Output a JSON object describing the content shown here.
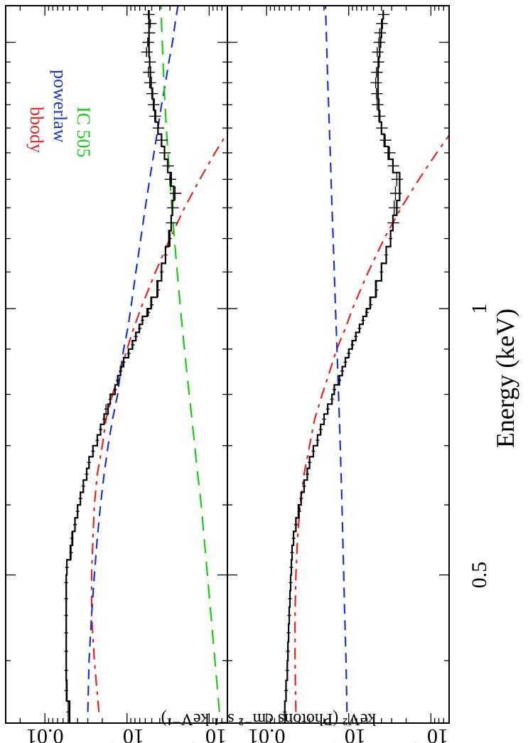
{
  "chart_data": {
    "type": "line",
    "orientation": "rotated-90-clockwise",
    "x_axis": {
      "label": "Energy (keV)",
      "scale": "log",
      "range": [
        0.34,
        2.2
      ],
      "tick_labels": [
        "0.5",
        "1"
      ]
    },
    "y_axis": {
      "label": "keV² (Photons cm⁻² s⁻¹ keV⁻¹)",
      "scale": "log",
      "tick_labels": [
        "0.01",
        "10⁻³",
        "10⁻⁴"
      ]
    },
    "legend": {
      "placement": "top-right",
      "entries": [
        {
          "name": "bbody",
          "color": "#e8231f"
        },
        {
          "name": "powerlaw",
          "color": "#1a33d6"
        },
        {
          "name": "IC 505",
          "color": "#18cc12"
        }
      ]
    },
    "panels": [
      {
        "ylim": [
          6e-05,
          0.03
        ],
        "data": {
          "x": [
            0.35,
            0.37,
            0.39,
            0.41,
            0.43,
            0.45,
            0.47,
            0.49,
            0.51,
            0.53,
            0.55,
            0.57,
            0.59,
            0.61,
            0.63,
            0.65,
            0.67,
            0.69,
            0.71,
            0.73,
            0.75,
            0.77,
            0.79,
            0.81,
            0.83,
            0.85,
            0.87,
            0.89,
            0.91,
            0.93,
            0.95,
            0.97,
            0.99,
            1.01,
            1.05,
            1.1,
            1.15,
            1.2,
            1.25,
            1.3,
            1.35,
            1.4,
            1.45,
            1.5,
            1.55,
            1.6,
            1.65,
            1.7,
            1.75,
            1.8,
            1.85,
            1.9,
            1.95,
            2.0,
            2.05,
            2.1,
            2.15
          ],
          "y": [
            0.0052,
            0.0055,
            0.0055,
            0.0055,
            0.0055,
            0.0055,
            0.0055,
            0.0055,
            0.0054,
            0.0048,
            0.0047,
            0.0043,
            0.004,
            0.0037,
            0.0034,
            0.0031,
            0.0029,
            0.0026,
            0.0023,
            0.0021,
            0.0019,
            0.0018,
            0.0016,
            0.0014,
            0.0013,
            0.0012,
            0.0011,
            0.00095,
            0.00085,
            0.00078,
            0.0007,
            0.00065,
            0.00055,
            0.0005,
            0.00042,
            0.00038,
            0.00034,
            0.0003,
            0.00029,
            0.00028,
            0.00026,
            0.0003,
            0.00032,
            0.00035,
            0.00038,
            0.00042,
            0.00046,
            0.00048,
            0.0005,
            0.00053,
            0.00055,
            0.00053,
            0.00058,
            0.00056,
            0.00054,
            0.00052,
            0.00055
          ]
        },
        "model": {
          "x": [
            0.35,
            0.37,
            0.39,
            0.41,
            0.43,
            0.45,
            0.47,
            0.49,
            0.51,
            0.53,
            0.55,
            0.57,
            0.59,
            0.61,
            0.63,
            0.65,
            0.67,
            0.69,
            0.71,
            0.73,
            0.75,
            0.77,
            0.79,
            0.81,
            0.83,
            0.85,
            0.87,
            0.89,
            0.91,
            0.93,
            0.95,
            0.97,
            0.99,
            1.01,
            1.05,
            1.1,
            1.15,
            1.2,
            1.25,
            1.3,
            1.35,
            1.4,
            1.45,
            1.5,
            1.55,
            1.6,
            1.65,
            1.7,
            1.75,
            1.8,
            1.85,
            1.9,
            1.95,
            2.0,
            2.05,
            2.1,
            2.15
          ],
          "y": [
            0.005,
            0.0054,
            0.0055,
            0.0055,
            0.0055,
            0.0055,
            0.0055,
            0.0055,
            0.0054,
            0.0049,
            0.0046,
            0.0043,
            0.004,
            0.0037,
            0.0034,
            0.0031,
            0.0029,
            0.0026,
            0.0023,
            0.0021,
            0.0019,
            0.0017,
            0.0016,
            0.0014,
            0.0013,
            0.0012,
            0.0011,
            0.00096,
            0.00086,
            0.00078,
            0.00071,
            0.00065,
            0.00057,
            0.00051,
            0.00043,
            0.00038,
            0.00034,
            0.00031,
            0.00029,
            0.00028,
            0.00027,
            0.00029,
            0.00032,
            0.00035,
            0.00038,
            0.00042,
            0.00045,
            0.00047,
            0.00049,
            0.00051,
            0.00052,
            0.00053,
            0.00054,
            0.00054,
            0.00054,
            0.00054,
            0.00054
          ]
        },
        "series": [
          {
            "name": "bbody",
            "x": [
              0.35,
              0.4,
              0.45,
              0.5,
              0.55,
              0.6,
              0.65,
              0.7,
              0.75,
              0.8,
              0.85,
              0.9,
              0.95,
              1.0,
              1.1,
              1.2,
              1.3,
              1.4,
              1.5,
              1.6,
              1.7,
              1.8,
              1.9,
              2.0,
              2.1,
              2.2
            ],
            "y": [
              0.0022,
              0.0025,
              0.0027,
              0.0027,
              0.0026,
              0.0025,
              0.0023,
              0.002,
              0.0018,
              0.0015,
              0.0012,
              0.001,
              0.00083,
              0.00068,
              0.00045,
              0.0003,
              0.0002,
              0.00013,
              8.5e-05,
              5.5e-05,
              3.5e-05,
              2.2e-05,
              1.4e-05,
              9e-06,
              6e-06,
              4e-06
            ]
          },
          {
            "name": "powerlaw",
            "x": [
              0.35,
              0.4,
              0.45,
              0.5,
              0.55,
              0.6,
              0.65,
              0.7,
              0.75,
              0.8,
              0.85,
              0.9,
              0.95,
              1.0,
              1.1,
              1.2,
              1.3,
              1.4,
              1.5,
              1.6,
              1.7,
              1.8,
              1.9,
              2.0,
              2.1,
              2.2
            ],
            "y": [
              0.003,
              0.0029,
              0.0027,
              0.0025,
              0.0023,
              0.0021,
              0.0019,
              0.0017,
              0.0015,
              0.0013,
              0.0012,
              0.0011,
              0.00098,
              0.0009,
              0.00078,
              0.00068,
              0.0006,
              0.00053,
              0.00047,
              0.00042,
              0.00038,
              0.00034,
              0.00031,
              0.00028,
              0.00026,
              0.00024
            ]
          },
          {
            "name": "IC 505",
            "x": [
              0.35,
              0.4,
              0.45,
              0.5,
              0.55,
              0.6,
              0.65,
              0.7,
              0.75,
              0.8,
              0.85,
              0.9,
              0.95,
              1.0,
              1.1,
              1.2,
              1.3,
              1.4,
              1.5,
              1.6,
              1.7,
              1.8,
              1.9,
              2.0,
              2.1,
              2.2
            ],
            "y": [
              7.5e-05,
              8.5e-05,
              9.5e-05,
              0.000105,
              0.000115,
              0.000125,
              0.000138,
              0.00015,
              0.000162,
              0.000175,
              0.000188,
              0.0002,
              0.000212,
              0.000224,
              0.000245,
              0.000265,
              0.000285,
              0.0003,
              0.000318,
              0.000332,
              0.000345,
              0.000355,
              0.000365,
              0.000372,
              0.00038,
              0.000385
            ]
          }
        ]
      },
      {
        "ylim": [
          6e-05,
          0.03
        ],
        "data": {
          "x": [
            0.35,
            0.37,
            0.39,
            0.41,
            0.43,
            0.45,
            0.47,
            0.49,
            0.51,
            0.53,
            0.55,
            0.57,
            0.59,
            0.61,
            0.63,
            0.65,
            0.67,
            0.69,
            0.71,
            0.73,
            0.75,
            0.77,
            0.79,
            0.81,
            0.83,
            0.85,
            0.87,
            0.89,
            0.91,
            0.93,
            0.95,
            0.97,
            0.99,
            1.01,
            1.05,
            1.1,
            1.15,
            1.2,
            1.25,
            1.3,
            1.35,
            1.4,
            1.45,
            1.5,
            1.55,
            1.6,
            1.65,
            1.7,
            1.75,
            1.8,
            1.85,
            1.9,
            1.95,
            2.0,
            2.05,
            2.1,
            2.15
          ],
          "y": [
            0.006,
            0.0058,
            0.0056,
            0.0055,
            0.0054,
            0.0053,
            0.0052,
            0.0051,
            0.005,
            0.0049,
            0.0047,
            0.0044,
            0.004,
            0.0038,
            0.0035,
            0.0032,
            0.003,
            0.0027,
            0.0024,
            0.0022,
            0.002,
            0.0018,
            0.0016,
            0.0015,
            0.0013,
            0.0012,
            0.0011,
            0.001,
            0.0009,
            0.00082,
            0.00074,
            0.00067,
            0.0006,
            0.00054,
            0.00046,
            0.0004,
            0.00035,
            0.00031,
            0.00029,
            0.00028,
            0.00027,
            0.00026,
            0.00029,
            0.00032,
            0.00036,
            0.0004,
            0.00043,
            0.00045,
            0.00046,
            0.00047,
            0.00046,
            0.00044,
            0.00045,
            0.00043,
            0.00042,
            0.0004,
            0.00038
          ]
        },
        "model": {
          "x": [
            0.35,
            0.37,
            0.39,
            0.41,
            0.43,
            0.45,
            0.47,
            0.49,
            0.51,
            0.53,
            0.55,
            0.57,
            0.59,
            0.61,
            0.63,
            0.65,
            0.67,
            0.69,
            0.71,
            0.73,
            0.75,
            0.77,
            0.79,
            0.81,
            0.83,
            0.85,
            0.87,
            0.89,
            0.91,
            0.93,
            0.95,
            0.97,
            0.99,
            1.01,
            1.05,
            1.1,
            1.15,
            1.2,
            1.25,
            1.3,
            1.35,
            1.4,
            1.45,
            1.5,
            1.55,
            1.6,
            1.65,
            1.7,
            1.75,
            1.8,
            1.85,
            1.9,
            1.95,
            2.0,
            2.05,
            2.1,
            2.15
          ],
          "y": [
            0.006,
            0.0058,
            0.0056,
            0.0055,
            0.0054,
            0.0053,
            0.0052,
            0.0051,
            0.005,
            0.0049,
            0.0047,
            0.0044,
            0.0041,
            0.0038,
            0.0035,
            0.0032,
            0.003,
            0.0027,
            0.0024,
            0.0022,
            0.002,
            0.0018,
            0.0016,
            0.0015,
            0.0013,
            0.0012,
            0.0011,
            0.001,
            0.00091,
            0.00082,
            0.00074,
            0.00067,
            0.00061,
            0.00055,
            0.00047,
            0.0004,
            0.00035,
            0.00031,
            0.00029,
            0.00026,
            0.00024,
            0.00024,
            0.00029,
            0.00033,
            0.00037,
            0.0004,
            0.00042,
            0.00043,
            0.00044,
            0.00044,
            0.00044,
            0.00043,
            0.00042,
            0.00041,
            0.0004,
            0.00039,
            0.00038
          ]
        },
        "series": [
          {
            "name": "bbody",
            "x": [
              0.35,
              0.4,
              0.45,
              0.5,
              0.55,
              0.6,
              0.65,
              0.7,
              0.75,
              0.8,
              0.85,
              0.9,
              0.95,
              1.0,
              1.1,
              1.2,
              1.3,
              1.4,
              1.5,
              1.6,
              1.7,
              1.8,
              1.9,
              2.0,
              2.1,
              2.2
            ],
            "y": [
              0.0044,
              0.0045,
              0.0045,
              0.0044,
              0.0042,
              0.0039,
              0.0035,
              0.003,
              0.0026,
              0.0021,
              0.0017,
              0.0014,
              0.0011,
              0.0009,
              0.00058,
              0.00037,
              0.00023,
              0.00014,
              8.5e-05,
              5.2e-05,
              3.2e-05,
              2e-05,
              1.2e-05,
              7.5e-06,
              4.6e-06,
              2.8e-06
            ]
          },
          {
            "name": "powerlaw",
            "x": [
              0.35,
              0.4,
              0.45,
              0.5,
              0.55,
              0.6,
              0.65,
              0.7,
              0.75,
              0.8,
              0.85,
              0.9,
              0.95,
              1.0,
              1.1,
              1.2,
              1.3,
              1.4,
              1.5,
              1.6,
              1.7,
              1.8,
              1.9,
              2.0,
              2.1,
              2.2
            ],
            "y": [
              0.00105,
              0.00108,
              0.00112,
              0.00115,
              0.00118,
              0.00121,
              0.00124,
              0.00127,
              0.0013,
              0.00133,
              0.00136,
              0.00139,
              0.00142,
              0.00145,
              0.0015,
              0.00155,
              0.0016,
              0.00164,
              0.00168,
              0.00172,
              0.00176,
              0.0018,
              0.00183,
              0.00186,
              0.00189,
              0.00192
            ]
          }
        ]
      }
    ]
  }
}
